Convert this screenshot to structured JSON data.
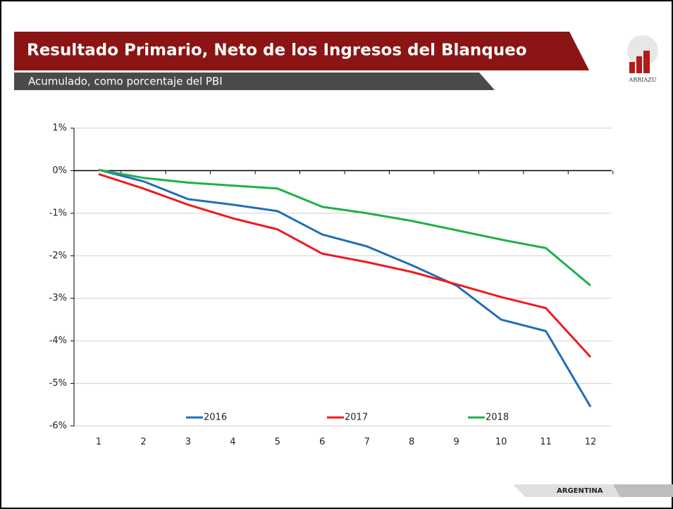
{
  "header": {
    "title": "Resultado Primario, Neto de los Ingresos del Blanqueo",
    "subtitle": "Acumulado, como porcentaje del PBI",
    "logo": "ARRIAZU"
  },
  "footer": {
    "country": "ARGENTINA"
  },
  "chart_data": {
    "type": "line",
    "categories": [
      1,
      2,
      3,
      4,
      5,
      6,
      7,
      8,
      9,
      10,
      11,
      12
    ],
    "series": [
      {
        "name": "2016",
        "color": "#1f6fb8",
        "values": [
          0.02,
          -0.25,
          -0.67,
          -0.8,
          -0.95,
          -1.5,
          -1.78,
          -2.22,
          -2.7,
          -3.5,
          -3.77,
          -5.55
        ]
      },
      {
        "name": "2017",
        "color": "#f0191e",
        "values": [
          -0.08,
          -0.42,
          -0.8,
          -1.12,
          -1.38,
          -1.95,
          -2.15,
          -2.38,
          -2.67,
          -2.97,
          -3.23,
          -4.38
        ]
      },
      {
        "name": "2018",
        "color": "#1fb04a",
        "values": [
          0.02,
          -0.17,
          -0.28,
          -0.35,
          -0.42,
          -0.85,
          -1.0,
          -1.18,
          -1.4,
          -1.62,
          -1.82,
          -2.7
        ]
      }
    ],
    "ylim": [
      -6,
      1
    ],
    "yticks": [
      {
        "value": 1,
        "label": "1%"
      },
      {
        "value": 0,
        "label": "0%"
      },
      {
        "value": -1,
        "label": "-1%"
      },
      {
        "value": -2,
        "label": "-2%"
      },
      {
        "value": -3,
        "label": "-3%"
      },
      {
        "value": -4,
        "label": "-4%"
      },
      {
        "value": -5,
        "label": "-5%"
      },
      {
        "value": -6,
        "label": "-6%"
      }
    ],
    "grid": true,
    "legend": "bottom"
  }
}
